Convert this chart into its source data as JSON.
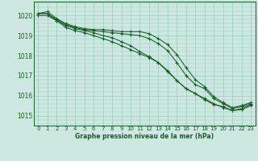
{
  "background_color": "#cce8e0",
  "grid_color": "#99ccbb",
  "line_color": "#1a5c2a",
  "text_color": "#1a5c2a",
  "xlabel": "Graphe pression niveau de la mer (hPa)",
  "xlim": [
    -0.5,
    23.5
  ],
  "ylim": [
    1014.5,
    1020.7
  ],
  "yticks": [
    1015,
    1016,
    1017,
    1018,
    1019,
    1020
  ],
  "xticks": [
    0,
    1,
    2,
    3,
    4,
    5,
    6,
    7,
    8,
    9,
    10,
    11,
    12,
    13,
    14,
    15,
    16,
    17,
    18,
    19,
    20,
    21,
    22,
    23
  ],
  "series": [
    [
      1020.1,
      1020.2,
      1019.85,
      1019.6,
      1019.45,
      1019.35,
      1019.3,
      1019.3,
      1019.25,
      1019.2,
      1019.2,
      1019.2,
      1019.1,
      1018.85,
      1018.55,
      1018.05,
      1017.4,
      1016.8,
      1016.45,
      1015.95,
      1015.65,
      1015.4,
      1015.5,
      1015.65
    ],
    [
      1020.1,
      1020.1,
      1019.8,
      1019.55,
      1019.4,
      1019.3,
      1019.25,
      1019.2,
      1019.15,
      1019.1,
      1019.05,
      1019.0,
      1018.85,
      1018.6,
      1018.25,
      1017.65,
      1017.0,
      1016.55,
      1016.35,
      1015.85,
      1015.6,
      1015.35,
      1015.45,
      1015.6
    ],
    [
      1020.1,
      1020.1,
      1019.75,
      1019.4,
      1019.25,
      1019.15,
      1019.0,
      1018.85,
      1018.7,
      1018.5,
      1018.3,
      1018.1,
      1017.9,
      1017.65,
      1017.25,
      1016.75,
      1016.35,
      1016.1,
      1015.85,
      1015.6,
      1015.4,
      1015.25,
      1015.3,
      1015.5
    ],
    [
      1020.0,
      1020.0,
      1019.75,
      1019.5,
      1019.35,
      1019.25,
      1019.15,
      1019.0,
      1018.9,
      1018.7,
      1018.5,
      1018.2,
      1017.95,
      1017.65,
      1017.2,
      1016.75,
      1016.35,
      1016.1,
      1015.8,
      1015.55,
      1015.45,
      1015.25,
      1015.35,
      1015.55
    ]
  ]
}
